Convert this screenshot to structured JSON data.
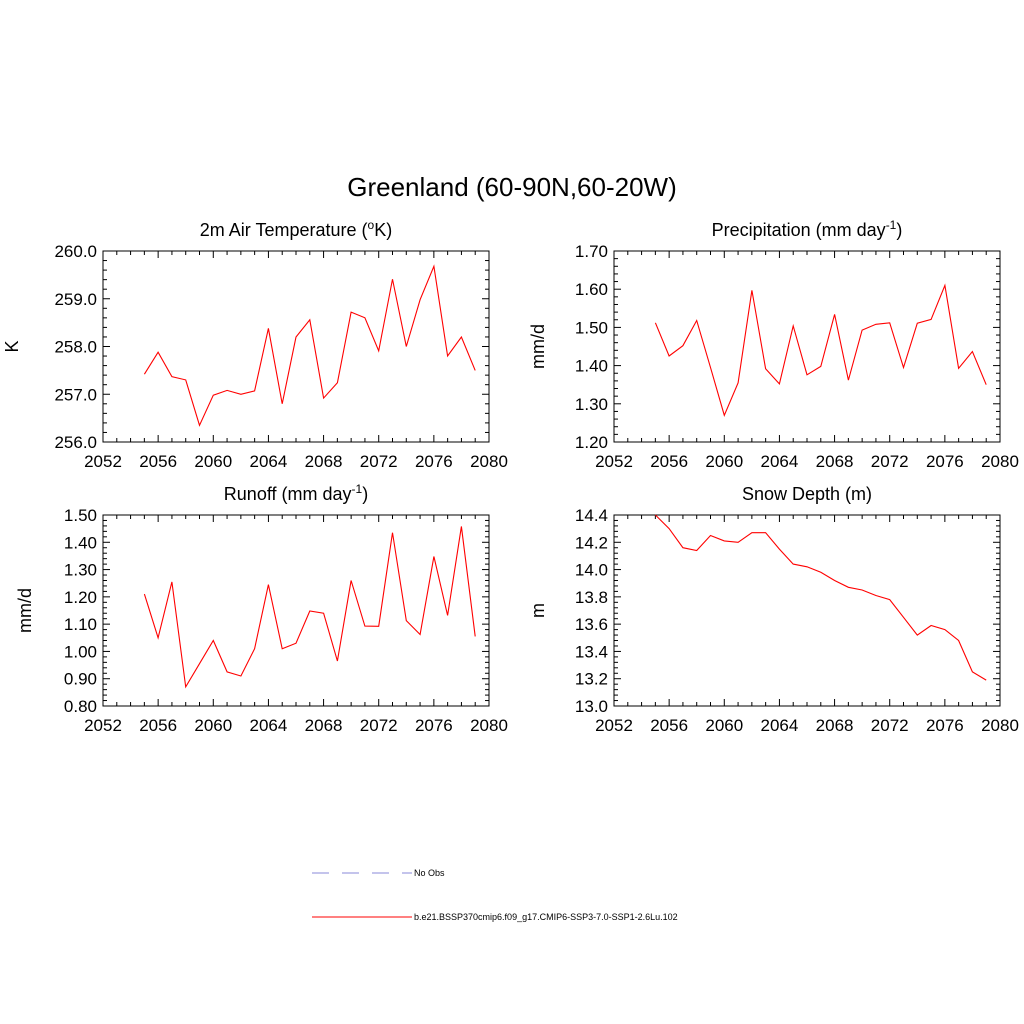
{
  "title": "Greenland (60-90N,60-20W)",
  "colors": {
    "model": "#ff0000",
    "obs": "#a0a0e0",
    "axis": "#000000"
  },
  "legend": {
    "obs_label": "No Obs",
    "model_label": "b.e21.BSSP370cmip6.f09_g17.CMIP6-SSP3-7.0-SSP1-2.6Lu.102"
  },
  "chart_data": [
    {
      "type": "line",
      "title": "2m Air Temperature (",
      "title_sup": "o",
      "title_after": "K)",
      "ylabel": "K",
      "xlim": [
        2052,
        2080
      ],
      "ylim": [
        256.0,
        260.0
      ],
      "xticks": [
        "2052",
        "2056",
        "2060",
        "2064",
        "2068",
        "2072",
        "2076",
        "2080"
      ],
      "yticks": [
        "256.0",
        "257.0",
        "258.0",
        "259.0",
        "260.0"
      ],
      "x": [
        2055,
        2056,
        2057,
        2058,
        2059,
        2060,
        2061,
        2062,
        2063,
        2064,
        2065,
        2066,
        2067,
        2068,
        2069,
        2070,
        2071,
        2072,
        2073,
        2074,
        2075,
        2076,
        2077,
        2078,
        2079
      ],
      "series": [
        {
          "values": [
            257.42,
            257.88,
            257.37,
            257.3,
            256.35,
            256.98,
            257.08,
            257.0,
            257.07,
            258.38,
            256.8,
            258.2,
            258.56,
            256.92,
            257.24,
            258.72,
            258.6,
            257.91,
            259.41,
            258.0,
            258.98,
            259.68,
            257.8,
            258.2,
            257.5
          ]
        }
      ]
    },
    {
      "type": "line",
      "title": "Precipitation (mm day",
      "title_sup": "-1",
      "title_after": ")",
      "ylabel": "mm/d",
      "xlim": [
        2052,
        2080
      ],
      "ylim": [
        1.2,
        1.7
      ],
      "xticks": [
        "2052",
        "2056",
        "2060",
        "2064",
        "2068",
        "2072",
        "2076",
        "2080"
      ],
      "yticks": [
        "1.20",
        "1.30",
        "1.40",
        "1.50",
        "1.60",
        "1.70"
      ],
      "x": [
        2055,
        2056,
        2057,
        2058,
        2059,
        2060,
        2061,
        2062,
        2063,
        2064,
        2065,
        2066,
        2067,
        2068,
        2069,
        2070,
        2071,
        2072,
        2073,
        2074,
        2075,
        2076,
        2077,
        2078,
        2079
      ],
      "series": [
        {
          "values": [
            1.512,
            1.425,
            1.452,
            1.518,
            1.395,
            1.27,
            1.355,
            1.597,
            1.392,
            1.352,
            1.504,
            1.376,
            1.398,
            1.534,
            1.362,
            1.493,
            1.508,
            1.512,
            1.395,
            1.511,
            1.521,
            1.61,
            1.393,
            1.437,
            1.35
          ]
        }
      ]
    },
    {
      "type": "line",
      "title": "Runoff (mm day",
      "title_sup": "-1",
      "title_after": ")",
      "ylabel": "mm/d",
      "xlim": [
        2052,
        2080
      ],
      "ylim": [
        0.8,
        1.5
      ],
      "xticks": [
        "2052",
        "2056",
        "2060",
        "2064",
        "2068",
        "2072",
        "2076",
        "2080"
      ],
      "yticks": [
        "0.80",
        "0.90",
        "1.00",
        "1.10",
        "1.20",
        "1.30",
        "1.40",
        "1.50"
      ],
      "x": [
        2055,
        2056,
        2057,
        2058,
        2059,
        2060,
        2061,
        2062,
        2063,
        2064,
        2065,
        2066,
        2067,
        2068,
        2069,
        2070,
        2071,
        2072,
        2073,
        2074,
        2075,
        2076,
        2077,
        2078,
        2079
      ],
      "series": [
        {
          "values": [
            1.21,
            1.05,
            1.255,
            0.87,
            0.955,
            1.04,
            0.925,
            0.91,
            1.01,
            1.245,
            1.01,
            1.03,
            1.148,
            1.14,
            0.965,
            1.26,
            1.093,
            1.092,
            1.435,
            1.113,
            1.062,
            1.348,
            1.132,
            1.458,
            1.055
          ]
        }
      ]
    },
    {
      "type": "line",
      "title": "Snow Depth (m)",
      "title_sup": "",
      "title_after": "",
      "ylabel": "m",
      "xlim": [
        2052,
        2080
      ],
      "ylim": [
        13.0,
        14.4
      ],
      "xticks": [
        "2052",
        "2056",
        "2060",
        "2064",
        "2068",
        "2072",
        "2076",
        "2080"
      ],
      "yticks": [
        "13.0",
        "13.2",
        "13.4",
        "13.6",
        "13.8",
        "14.0",
        "14.2",
        "14.4"
      ],
      "x": [
        2055,
        2056,
        2057,
        2058,
        2059,
        2060,
        2061,
        2062,
        2063,
        2064,
        2065,
        2066,
        2067,
        2068,
        2069,
        2070,
        2071,
        2072,
        2073,
        2074,
        2075,
        2076,
        2077,
        2078,
        2079
      ],
      "series": [
        {
          "values": [
            14.4,
            14.3,
            14.16,
            14.14,
            14.25,
            14.21,
            14.2,
            14.27,
            14.27,
            14.15,
            14.04,
            14.02,
            13.98,
            13.92,
            13.87,
            13.85,
            13.81,
            13.78,
            13.65,
            13.52,
            13.59,
            13.56,
            13.48,
            13.25,
            13.19
          ]
        }
      ]
    }
  ]
}
